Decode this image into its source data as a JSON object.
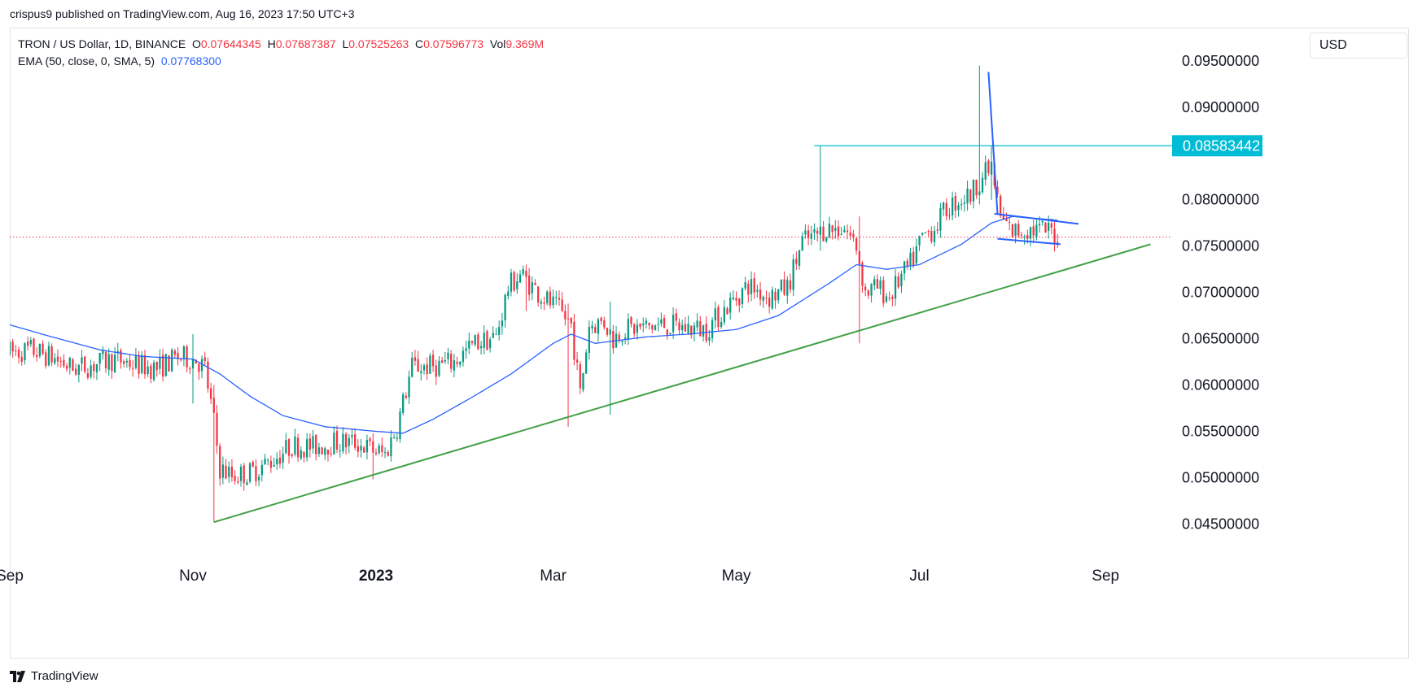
{
  "header": {
    "publish_text": "crispus9 published on TradingView.com, Aug 16, 2023 17:50 UTC+3"
  },
  "legend": {
    "symbol": "TRON / US Dollar, 1D, BINANCE",
    "open_label": "O",
    "open_value": "0.07644345",
    "high_label": "H",
    "high_value": "0.07687387",
    "low_label": "L",
    "low_value": "0.07525263",
    "close_label": "C",
    "close_value": "0.07596773",
    "vol_label": "Vol",
    "vol_value": "9.369M",
    "ema_label": "EMA (50, close, 0, SMA, 5)",
    "ema_value": "0.07768300"
  },
  "currency": "USD",
  "footer": {
    "brand": "TradingView",
    "logo_icon": "tradingview-logo-icon"
  },
  "colors": {
    "up": "#089981",
    "down": "#f23645",
    "ema": "#2962ff",
    "support": "#43a047",
    "resistance": "#00bcd4",
    "pattern": "#2962ff",
    "last_price_line": "#f23645",
    "price_label_bg": "#00bcd4"
  },
  "chart_data": {
    "type": "candlestick",
    "symbol": "TRON / US Dollar",
    "interval": "1D",
    "exchange": "BINANCE",
    "ylim": [
      0.041,
      0.0985
    ],
    "y_ticks": [
      "0.04500000",
      "0.05000000",
      "0.05500000",
      "0.06000000",
      "0.06500000",
      "0.07000000",
      "0.07500000",
      "0.08000000",
      "0.09000000",
      "0.09500000"
    ],
    "x_ticks": [
      "Sep",
      "Nov",
      "2023",
      "Mar",
      "May",
      "Jul",
      "Sep"
    ],
    "x_tick_dates": [
      "2022-09-01",
      "2022-11-01",
      "2023-01-01",
      "2023-03-01",
      "2023-05-01",
      "2023-07-01",
      "2023-09-01"
    ],
    "x_range": [
      "2022-09-01",
      "2023-09-21"
    ],
    "price_label": "0.08583442",
    "last_close": 0.07596773,
    "ema_period": 50,
    "annotations": {
      "resistance_level": 0.08583442,
      "resistance_start": "2023-05-27",
      "support_line": [
        [
          "2022-11-08",
          0.0452
        ],
        [
          "2023-09-16",
          0.0752
        ]
      ],
      "flag_pole": [
        [
          "2023-07-24",
          0.0938
        ],
        [
          "2023-07-27",
          0.0785
        ]
      ],
      "flag_upper": [
        [
          "2023-07-26",
          0.0785
        ],
        [
          "2023-08-23",
          0.0774
        ]
      ],
      "flag_lower": [
        [
          "2023-07-27",
          0.0758
        ],
        [
          "2023-08-17",
          0.0752
        ]
      ]
    },
    "price_path": [
      [
        "2022-09-01",
        0.0635
      ],
      [
        "2022-09-08",
        0.0638
      ],
      [
        "2022-09-15",
        0.063
      ],
      [
        "2022-09-22",
        0.0618
      ],
      [
        "2022-09-29",
        0.0622
      ],
      [
        "2022-10-06",
        0.0628
      ],
      [
        "2022-10-13",
        0.0622
      ],
      [
        "2022-10-20",
        0.0618
      ],
      [
        "2022-10-27",
        0.063
      ],
      [
        "2022-11-02",
        0.0628
      ],
      [
        "2022-11-05",
        0.0618
      ],
      [
        "2022-11-08",
        0.056
      ],
      [
        "2022-11-10",
        0.051
      ],
      [
        "2022-11-14",
        0.0502
      ],
      [
        "2022-11-20",
        0.0505
      ],
      [
        "2022-11-27",
        0.0518
      ],
      [
        "2022-12-04",
        0.0535
      ],
      [
        "2022-12-11",
        0.0533
      ],
      [
        "2022-12-18",
        0.0538
      ],
      [
        "2022-12-25",
        0.0538
      ],
      [
        "2022-12-31",
        0.053
      ],
      [
        "2023-01-04",
        0.0525
      ],
      [
        "2023-01-08",
        0.0555
      ],
      [
        "2023-01-13",
        0.062
      ],
      [
        "2023-01-20",
        0.062
      ],
      [
        "2023-01-27",
        0.0625
      ],
      [
        "2023-02-03",
        0.0645
      ],
      [
        "2023-02-10",
        0.0652
      ],
      [
        "2023-02-14",
        0.0705
      ],
      [
        "2023-02-18",
        0.072
      ],
      [
        "2023-02-24",
        0.07
      ],
      [
        "2023-03-03",
        0.068
      ],
      [
        "2023-03-07",
        0.0665
      ],
      [
        "2023-03-10",
        0.059
      ],
      [
        "2023-03-13",
        0.0665
      ],
      [
        "2023-03-18",
        0.0668
      ],
      [
        "2023-03-21",
        0.065
      ],
      [
        "2023-03-24",
        0.066
      ],
      [
        "2023-03-31",
        0.0662
      ],
      [
        "2023-04-07",
        0.0665
      ],
      [
        "2023-04-14",
        0.0662
      ],
      [
        "2023-04-21",
        0.066
      ],
      [
        "2023-04-28",
        0.0685
      ],
      [
        "2023-05-05",
        0.0708
      ],
      [
        "2023-05-12",
        0.0695
      ],
      [
        "2023-05-18",
        0.0705
      ],
      [
        "2023-05-23",
        0.0755
      ],
      [
        "2023-05-27",
        0.076
      ],
      [
        "2023-05-31",
        0.077
      ],
      [
        "2023-06-02",
        0.0768
      ],
      [
        "2023-06-06",
        0.077
      ],
      [
        "2023-06-10",
        0.075
      ],
      [
        "2023-06-13",
        0.07
      ],
      [
        "2023-06-17",
        0.0705
      ],
      [
        "2023-06-21",
        0.0695
      ],
      [
        "2023-06-24",
        0.0712
      ],
      [
        "2023-06-28",
        0.073
      ],
      [
        "2023-07-02",
        0.076
      ],
      [
        "2023-07-06",
        0.077
      ],
      [
        "2023-07-10",
        0.079
      ],
      [
        "2023-07-14",
        0.08
      ],
      [
        "2023-07-18",
        0.0805
      ],
      [
        "2023-07-21",
        0.0822
      ],
      [
        "2023-07-25",
        0.0835
      ],
      [
        "2023-07-28",
        0.078
      ],
      [
        "2023-08-01",
        0.0765
      ],
      [
        "2023-08-05",
        0.0768
      ],
      [
        "2023-08-10",
        0.0767
      ],
      [
        "2023-08-14",
        0.0766
      ],
      [
        "2023-08-16",
        0.076
      ]
    ],
    "ema_path": [
      [
        "2022-09-01",
        0.0665
      ],
      [
        "2022-09-15",
        0.0652
      ],
      [
        "2022-10-01",
        0.0638
      ],
      [
        "2022-10-15",
        0.0631
      ],
      [
        "2022-11-01",
        0.0628
      ],
      [
        "2022-11-10",
        0.0612
      ],
      [
        "2022-11-20",
        0.0588
      ],
      [
        "2022-12-01",
        0.0567
      ],
      [
        "2022-12-15",
        0.0555
      ],
      [
        "2023-01-01",
        0.055
      ],
      [
        "2023-01-10",
        0.0548
      ],
      [
        "2023-01-20",
        0.0563
      ],
      [
        "2023-02-01",
        0.0585
      ],
      [
        "2023-02-15",
        0.0612
      ],
      [
        "2023-03-01",
        0.0645
      ],
      [
        "2023-03-07",
        0.0655
      ],
      [
        "2023-03-15",
        0.0645
      ],
      [
        "2023-04-01",
        0.0652
      ],
      [
        "2023-04-15",
        0.0655
      ],
      [
        "2023-05-01",
        0.066
      ],
      [
        "2023-05-15",
        0.0675
      ],
      [
        "2023-06-01",
        0.071
      ],
      [
        "2023-06-10",
        0.073
      ],
      [
        "2023-06-20",
        0.0725
      ],
      [
        "2023-07-01",
        0.073
      ],
      [
        "2023-07-15",
        0.0752
      ],
      [
        "2023-07-25",
        0.0775
      ],
      [
        "2023-08-01",
        0.0782
      ],
      [
        "2023-08-16",
        0.0778
      ]
    ],
    "wick_highlights": [
      [
        "2022-11-01",
        0.0655,
        0.058
      ],
      [
        "2022-11-08",
        0.06,
        0.0452
      ],
      [
        "2022-12-31",
        0.0548,
        0.0498
      ],
      [
        "2023-02-20",
        0.073,
        0.068
      ],
      [
        "2023-03-06",
        0.0688,
        0.0555
      ],
      [
        "2023-03-20",
        0.069,
        0.0568
      ],
      [
        "2023-05-29",
        0.0858,
        0.0745
      ],
      [
        "2023-06-11",
        0.0782,
        0.0645
      ],
      [
        "2023-07-21",
        0.0945,
        0.0795
      ],
      [
        "2023-07-25",
        0.0858,
        0.08
      ]
    ]
  }
}
